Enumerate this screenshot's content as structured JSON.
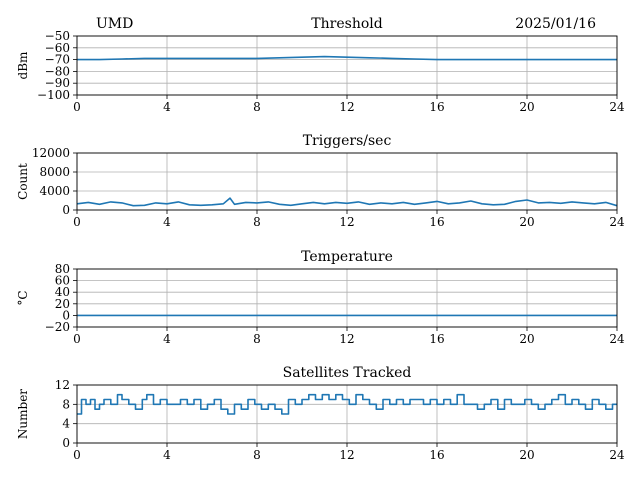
{
  "header": {
    "station": "UMD",
    "date": "2025/01/16"
  },
  "colors": {
    "series": "#1f77b4",
    "grid": "#b0b0b0",
    "axes": "#000000"
  },
  "chart_data": [
    {
      "type": "line",
      "title": "Threshold",
      "ylabel": "dBm",
      "xlabel": "",
      "xlim": [
        0,
        24
      ],
      "xticks": [
        0,
        4,
        8,
        12,
        16,
        20,
        24
      ],
      "ylim": [
        -100,
        -50
      ],
      "yticks": [
        -100,
        -90,
        -80,
        -70,
        -60,
        -50
      ],
      "grid": true,
      "series": [
        {
          "x": [
            0,
            1,
            2,
            3,
            4,
            5,
            6,
            7,
            8,
            9,
            10,
            11,
            12,
            13,
            14,
            15,
            16,
            17,
            18,
            19,
            20,
            21,
            22,
            23,
            24
          ],
          "y": [
            -70,
            -70,
            -69.5,
            -69,
            -69,
            -69,
            -69,
            -69,
            -69,
            -68.5,
            -68,
            -67.5,
            -68,
            -68.5,
            -69,
            -69.5,
            -70,
            -70,
            -70,
            -70,
            -70,
            -70,
            -70,
            -70,
            -70
          ]
        }
      ]
    },
    {
      "type": "line",
      "title": "Triggers/sec",
      "ylabel": "Count",
      "xlabel": "",
      "xlim": [
        0,
        24
      ],
      "xticks": [
        0,
        4,
        8,
        12,
        16,
        20,
        24
      ],
      "ylim": [
        0,
        12000
      ],
      "yticks": [
        0,
        4000,
        8000,
        12000
      ],
      "grid": true,
      "series": [
        {
          "x": [
            0,
            0.5,
            1,
            1.5,
            2,
            2.5,
            3,
            3.5,
            4,
            4.5,
            5,
            5.5,
            6,
            6.5,
            6.8,
            7,
            7.5,
            8,
            8.5,
            9,
            9.5,
            10,
            10.5,
            11,
            11.5,
            12,
            12.5,
            13,
            13.5,
            14,
            14.5,
            15,
            15.5,
            16,
            16.5,
            17,
            17.5,
            18,
            18.5,
            19,
            19.5,
            20,
            20.5,
            21,
            21.5,
            22,
            22.5,
            23,
            23.5,
            24
          ],
          "y": [
            1300,
            1600,
            1200,
            1700,
            1500,
            900,
            1000,
            1500,
            1300,
            1700,
            1100,
            1000,
            1100,
            1300,
            2500,
            1200,
            1600,
            1500,
            1700,
            1200,
            1000,
            1300,
            1600,
            1300,
            1600,
            1400,
            1700,
            1200,
            1500,
            1300,
            1600,
            1200,
            1500,
            1800,
            1300,
            1500,
            1900,
            1300,
            1100,
            1200,
            1800,
            2100,
            1500,
            1600,
            1400,
            1700,
            1500,
            1300,
            1600,
            900
          ]
        }
      ]
    },
    {
      "type": "line",
      "title": "Temperature",
      "ylabel": "°C",
      "xlabel": "",
      "xlim": [
        0,
        24
      ],
      "xticks": [
        0,
        4,
        8,
        12,
        16,
        20,
        24
      ],
      "ylim": [
        -20,
        80
      ],
      "yticks": [
        -20,
        0,
        20,
        40,
        60,
        80
      ],
      "grid": true,
      "series": [
        {
          "x": [
            0,
            24
          ],
          "y": [
            0,
            0
          ]
        }
      ]
    },
    {
      "type": "line",
      "title": "Satellites Tracked",
      "ylabel": "Number",
      "xlabel": "",
      "xlim": [
        0,
        24
      ],
      "xticks": [
        0,
        4,
        8,
        12,
        16,
        20,
        24
      ],
      "ylim": [
        0,
        12
      ],
      "yticks": [
        0,
        4,
        8,
        12
      ],
      "grid": true,
      "step": true,
      "series": [
        {
          "x": [
            0,
            0.2,
            0.4,
            0.6,
            0.8,
            1.0,
            1.2,
            1.5,
            1.8,
            2.0,
            2.3,
            2.6,
            2.9,
            3.1,
            3.4,
            3.7,
            4.0,
            4.3,
            4.6,
            4.9,
            5.2,
            5.5,
            5.8,
            6.1,
            6.4,
            6.7,
            7.0,
            7.3,
            7.6,
            7.9,
            8.2,
            8.5,
            8.8,
            9.1,
            9.4,
            9.7,
            10.0,
            10.3,
            10.6,
            10.9,
            11.2,
            11.5,
            11.8,
            12.1,
            12.4,
            12.7,
            13.0,
            13.3,
            13.6,
            13.9,
            14.2,
            14.5,
            14.8,
            15.1,
            15.4,
            15.7,
            16.0,
            16.3,
            16.6,
            16.9,
            17.2,
            17.5,
            17.8,
            18.1,
            18.4,
            18.7,
            19.0,
            19.3,
            19.6,
            19.9,
            20.2,
            20.5,
            20.8,
            21.1,
            21.4,
            21.7,
            22.0,
            22.3,
            22.6,
            22.9,
            23.2,
            23.5,
            23.8,
            24
          ],
          "y": [
            6,
            9,
            8,
            9,
            7,
            8,
            9,
            8,
            10,
            9,
            8,
            7,
            9,
            10,
            8,
            9,
            8,
            8,
            9,
            8,
            9,
            7,
            8,
            9,
            7,
            6,
            8,
            7,
            9,
            8,
            7,
            8,
            7,
            6,
            9,
            8,
            9,
            10,
            9,
            10,
            9,
            10,
            9,
            8,
            10,
            9,
            8,
            7,
            9,
            8,
            9,
            8,
            9,
            9,
            8,
            9,
            8,
            9,
            8,
            10,
            8,
            8,
            7,
            8,
            9,
            7,
            9,
            8,
            8,
            9,
            8,
            7,
            8,
            9,
            10,
            8,
            9,
            8,
            7,
            9,
            8,
            7,
            8,
            8
          ]
        }
      ]
    }
  ]
}
